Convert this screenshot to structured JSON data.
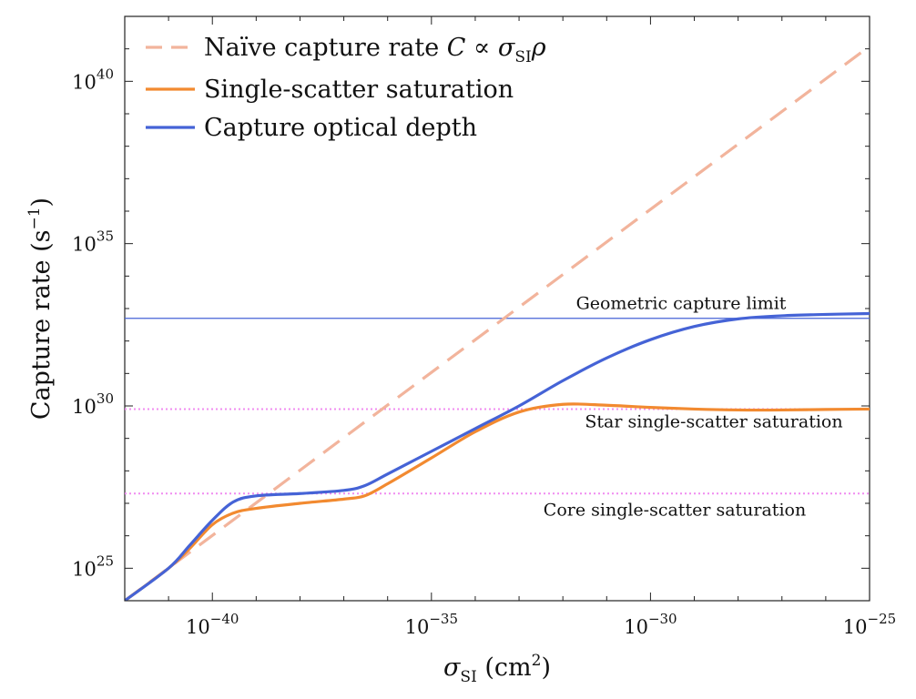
{
  "chart_data": {
    "type": "line",
    "title": "",
    "xscale": "log",
    "yscale": "log",
    "xlim": [
      1e-42,
      1e-25
    ],
    "ylim": [
      1e+24,
      1e+42
    ],
    "xlabel": {
      "main": "σ",
      "sub": "SI",
      "rest": " (cm",
      "sup": "2",
      "close": ")"
    },
    "ylabel": {
      "main": "Capture rate (s",
      "sup": "−1",
      "close": ")"
    },
    "xticks": [
      {
        "value": 1e-40,
        "base": "10",
        "exp": "−40"
      },
      {
        "value": 1e-35,
        "base": "10",
        "exp": "−35"
      },
      {
        "value": 1e-30,
        "base": "10",
        "exp": "−30"
      },
      {
        "value": 1e-25,
        "base": "10",
        "exp": "−25"
      }
    ],
    "yticks": [
      {
        "value": 1e+25,
        "base": "10",
        "exp": "25"
      },
      {
        "value": 1e+30,
        "base": "10",
        "exp": "30"
      },
      {
        "value": 1e+35,
        "base": "10",
        "exp": "35"
      },
      {
        "value": 1e+40,
        "base": "10",
        "exp": "40"
      }
    ],
    "legend_position": "top-left",
    "legend": [
      {
        "series": "naive",
        "text": "Naïve capture rate ",
        "math_var": "C",
        "math_op": " ∝ ",
        "math_sigma": "σ",
        "math_sub": "SI",
        "math_rho": "ρ"
      },
      {
        "series": "single",
        "text": "Single-scatter saturation"
      },
      {
        "series": "optical",
        "text": "Capture optical depth"
      }
    ],
    "series": [
      {
        "id": "naive",
        "name": "Naïve capture rate C ∝ σSIρ",
        "color": "#f2b49c",
        "style": "dashed",
        "x": [
          1e-42,
          1e-25
        ],
        "y": [
          1e+24,
          1.2e+41
        ]
      },
      {
        "id": "single",
        "name": "Single-scatter saturation",
        "color": "#f28a30",
        "style": "solid",
        "x": [
          1e-42,
          1e-41,
          3e-41,
          1e-40,
          3e-40,
          1e-39,
          1e-38,
          1e-37,
          3e-37,
          1e-36,
          1e-35,
          1e-34,
          1e-33,
          1e-32,
          1e-31,
          1e-30,
          1e-29,
          1e-28,
          1e-27,
          1e-26,
          1e-25
        ],
        "y": [
          1e+24,
          1e+25,
          4e+25,
          2.2e+26,
          5e+26,
          7e+26,
          1e+27,
          1.35e+27,
          1.7e+27,
          4e+27,
          2.5e+28,
          1.6e+29,
          6.5e+29,
          1.12e+30,
          1.05e+30,
          9e+29,
          8e+29,
          7.5e+29,
          7.5e+29,
          7.8e+29,
          8e+29
        ]
      },
      {
        "id": "optical",
        "name": "Capture optical depth",
        "color": "#4563d6",
        "style": "solid",
        "x": [
          1e-42,
          1e-41,
          3e-41,
          1e-40,
          3e-40,
          1e-39,
          1e-38,
          1e-37,
          3e-37,
          1e-36,
          1e-35,
          1e-34,
          1e-33,
          1e-32,
          1e-31,
          1e-30,
          1e-29,
          1e-28,
          1e-27,
          1e-26,
          1e-25
        ],
        "y": [
          1e+24,
          1e+25,
          5e+25,
          3e+26,
          1.1e+27,
          1.7e+27,
          2e+27,
          2.5e+27,
          3.5e+27,
          8e+27,
          4e+28,
          2e+29,
          1e+30,
          6e+30,
          3e+31,
          1.1e+32,
          2.8e+32,
          4.8e+32,
          6e+32,
          6.6e+32,
          7e+32
        ]
      }
    ],
    "reference_lines": [
      {
        "id": "geometric",
        "label": "Geometric capture limit",
        "y": 5e+32,
        "color": "#4563d6",
        "style": "solid"
      },
      {
        "id": "star",
        "label": "Star single-scatter saturation",
        "y": 8e+29,
        "color": "#f08cf0",
        "style": "dotted"
      },
      {
        "id": "core",
        "label": "Core single-scatter saturation",
        "y": 2e+27,
        "color": "#f08cf0",
        "style": "dotted"
      }
    ]
  }
}
